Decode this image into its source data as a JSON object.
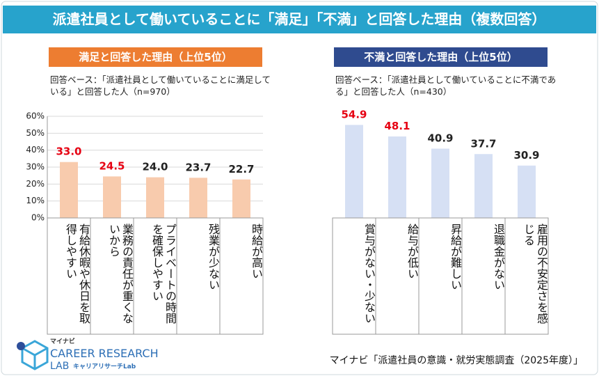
{
  "header": {
    "title": "派遣社員として働いていることに「満足」「不満」と回答した理由（複数回答）"
  },
  "chart_data": [
    {
      "type": "bar",
      "title": "満足と回答した理由（上位5位）",
      "subtitle": "回答ベース：「派遣社員として働いていることに満足している」と回答した人（n=970）",
      "categories": [
        "有給休暇や休日を取得しやすい",
        "業務の責任が重くないから",
        "プライベートの時間を確保しやすい",
        "残業が少ない",
        "時給が高い"
      ],
      "values": [
        33.0,
        24.5,
        24.0,
        23.7,
        22.7
      ],
      "value_labels": [
        "33.0",
        "24.5",
        "24.0",
        "23.7",
        "22.7"
      ],
      "value_label_colors": [
        "#e60012",
        "#e60012",
        "#222222",
        "#222222",
        "#222222"
      ],
      "color": "#f8cbad",
      "header_color": "#ed7d31",
      "ylim": [
        0,
        60
      ],
      "yticks": [
        {
          "value": 0,
          "label": "0%"
        },
        {
          "value": 10,
          "label": "10%"
        },
        {
          "value": 20,
          "label": "20%"
        },
        {
          "value": 30,
          "label": "30%"
        },
        {
          "value": 40,
          "label": "40%"
        },
        {
          "value": 50,
          "label": "50%"
        },
        {
          "value": 60,
          "label": "60%"
        }
      ],
      "grid": true
    },
    {
      "type": "bar",
      "title": "不満と回答した理由（上位5位）",
      "subtitle": "回答ベース：「派遣社員として働いていることに不満である」と回答した人（n=430）",
      "categories": [
        "賞与がない・少ない",
        "給与が低い",
        "昇給が難しい",
        "退職金がない",
        "雇用の不安定さを感じる"
      ],
      "values": [
        54.9,
        48.1,
        40.9,
        37.7,
        30.9
      ],
      "value_labels": [
        "54.9",
        "48.1",
        "40.9",
        "37.7",
        "30.9"
      ],
      "value_label_colors": [
        "#e60012",
        "#e60012",
        "#222222",
        "#222222",
        "#222222"
      ],
      "color": "#d6e0f4",
      "header_color": "#2f4b8f",
      "grid": false
    }
  ],
  "logo": {
    "brand": "マイナビ",
    "line1": "CAREER RESEARCH",
    "line2": "LAB",
    "line3": "キャリアリサーチLab"
  },
  "source": "マイナビ「派遣社員の意識・就労実態調査（2025年度）」"
}
